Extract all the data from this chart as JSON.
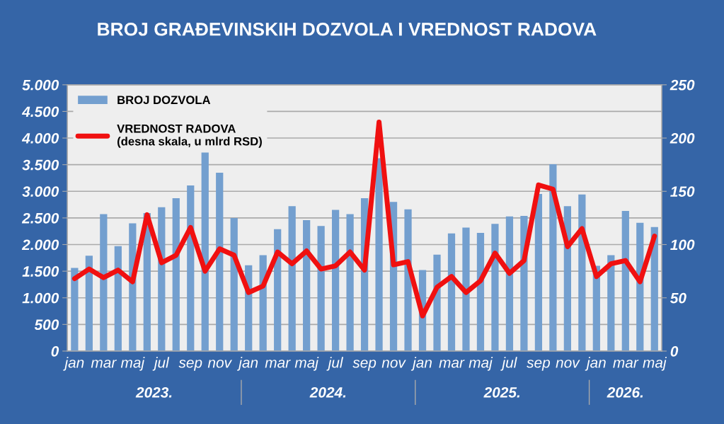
{
  "chart_data": {
    "type": "bar",
    "title": "BROJ GRAĐEVINSKIH DOZVOLA I VREDNOST RADOVA",
    "categories": [
      "jan",
      null,
      "mar",
      null,
      "maj",
      null,
      "jul",
      null,
      "sep",
      null,
      "nov",
      null,
      "jan",
      null,
      "mar",
      null,
      "maj",
      null,
      "jul",
      null,
      "sep",
      null,
      "nov",
      null,
      "jan",
      null,
      "mar",
      null,
      "maj",
      null,
      "jul",
      null,
      "sep",
      null,
      "nov",
      null,
      "jan",
      null,
      "mar",
      null,
      "maj"
    ],
    "series": [
      {
        "name": "BROJ DOZVOLA",
        "color": "#739fcf",
        "values": [
          1560,
          1790,
          2570,
          1970,
          2400,
          2590,
          2700,
          2870,
          3110,
          3760,
          3350,
          2500,
          1610,
          1800,
          2290,
          2720,
          2460,
          2350,
          2650,
          2570,
          2870,
          3620,
          2800,
          2660,
          1520,
          1810,
          2210,
          2320,
          2220,
          2390,
          2530,
          2540,
          2950,
          3510,
          2720,
          2940,
          1600,
          1800,
          2630,
          2410,
          2330
        ]
      },
      {
        "name": "VREDNOST RADOVA\n(desna skala, u mlrd RSD)",
        "type": "line",
        "axis": "y2",
        "color": "#f01010",
        "values": [
          68,
          77,
          69,
          76,
          65,
          128,
          83,
          90,
          116,
          75,
          96,
          90,
          55,
          61,
          93,
          82,
          94,
          77,
          80,
          93,
          76,
          215,
          81,
          84,
          33,
          60,
          70,
          55,
          66,
          92,
          73,
          85,
          156,
          152,
          98,
          115,
          70,
          82,
          85,
          65,
          108
        ]
      }
    ],
    "ylim": [
      0,
      5000
    ],
    "yticks": [
      {
        "value": 0,
        "label": "0"
      },
      {
        "value": 500,
        "label": "500"
      },
      {
        "value": 1000,
        "label": "1.000"
      },
      {
        "value": 1500,
        "label": "1.500"
      },
      {
        "value": 2000,
        "label": "2.000"
      },
      {
        "value": 2500,
        "label": "2.500"
      },
      {
        "value": 3000,
        "label": "3.000"
      },
      {
        "value": 3500,
        "label": "3.500"
      },
      {
        "value": 4000,
        "label": "4.000"
      },
      {
        "value": 4500,
        "label": "4.500"
      },
      {
        "value": 5000,
        "label": "5.000"
      }
    ],
    "y2lim": [
      0,
      250
    ],
    "y2ticks": [
      0,
      50,
      100,
      150,
      200,
      250
    ],
    "grid": "y",
    "legend": "top left",
    "annotations": [
      "2023.",
      "2024.",
      "2025.",
      "2026."
    ]
  }
}
